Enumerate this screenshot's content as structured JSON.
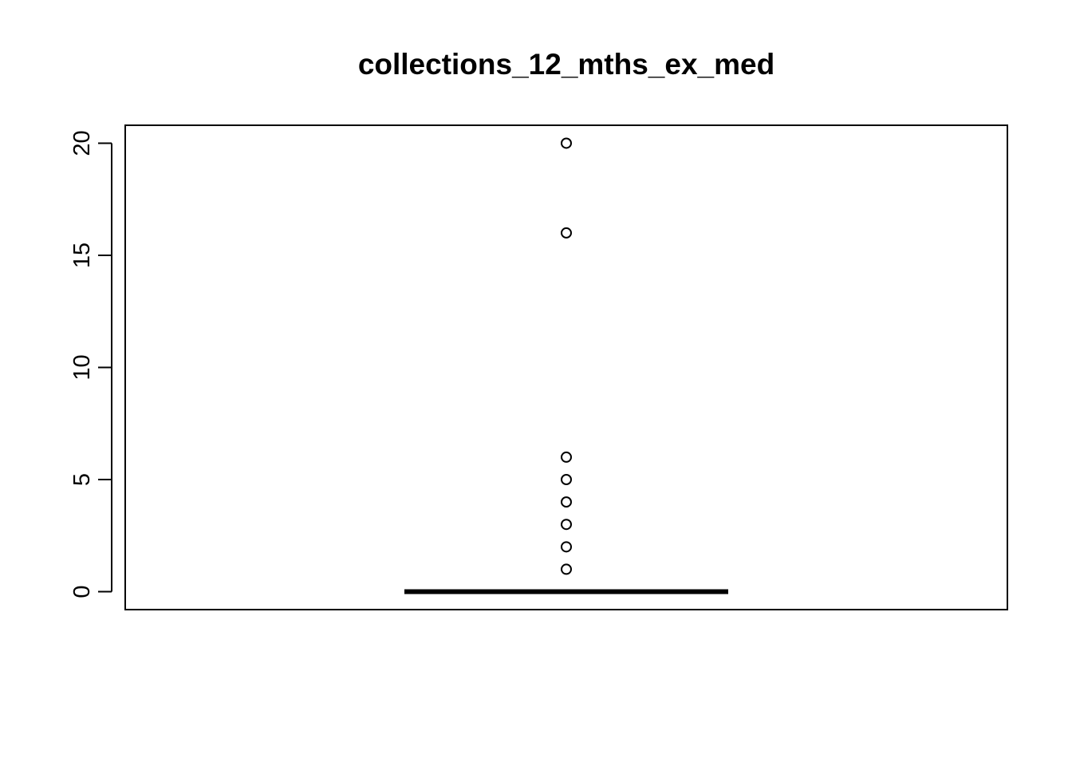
{
  "chart_data": {
    "type": "boxplot",
    "title": "collections_12_mths_ex_med",
    "xlabel": "",
    "ylabel": "",
    "ylim": [
      -0.8,
      20.8
    ],
    "y_ticks": [
      0,
      5,
      10,
      15,
      20
    ],
    "y_tick_labels": [
      "0",
      "5",
      "10",
      "15",
      "20"
    ],
    "box": {
      "min": 0,
      "q1": 0,
      "median": 0,
      "q3": 0,
      "max": 0
    },
    "outliers": [
      1,
      2,
      3,
      4,
      5,
      6,
      16,
      20
    ],
    "grid": false,
    "legend": "none",
    "colors": {
      "stroke": "#000000",
      "background": "#ffffff"
    }
  }
}
